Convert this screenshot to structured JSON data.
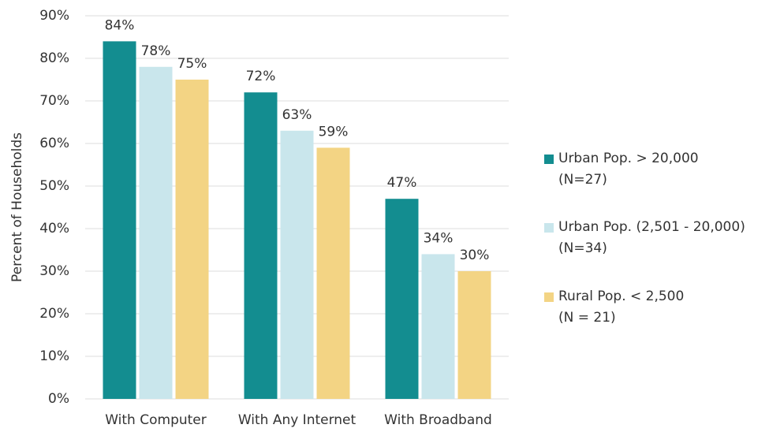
{
  "chart_data": {
    "type": "bar",
    "y_label": "Percent of Households",
    "categories": [
      "With Computer",
      "With Any Internet",
      "With Broadband"
    ],
    "series": [
      {
        "name": "Urban Pop. > 20,000\n(N=27)",
        "color": "#138d90",
        "values": [
          84,
          72,
          47
        ],
        "value_labels": [
          "84%",
          "72%",
          "47%"
        ]
      },
      {
        "name": "Urban Pop. (2,501 - 20,000)\n(N=34)",
        "color": "#c9e6ec",
        "values": [
          78,
          63,
          34
        ],
        "value_labels": [
          "78%",
          "63%",
          "34%"
        ]
      },
      {
        "name": "Rural Pop. < 2,500\n(N = 21)",
        "color": "#f3d484",
        "values": [
          75,
          59,
          30
        ],
        "value_labels": [
          "75%",
          "59%",
          "30%"
        ]
      }
    ],
    "ylim": [
      0,
      90
    ],
    "yticks": [
      {
        "value": 0,
        "label": "0%"
      },
      {
        "value": 10,
        "label": "10%"
      },
      {
        "value": 20,
        "label": "20%"
      },
      {
        "value": 30,
        "label": "30%"
      },
      {
        "value": 40,
        "label": "40%"
      },
      {
        "value": 50,
        "label": "50%"
      },
      {
        "value": 60,
        "label": "60%"
      },
      {
        "value": 70,
        "label": "70%"
      },
      {
        "value": 80,
        "label": "80%"
      },
      {
        "value": 90,
        "label": "90%"
      }
    ],
    "grid": true,
    "legend": "right"
  }
}
